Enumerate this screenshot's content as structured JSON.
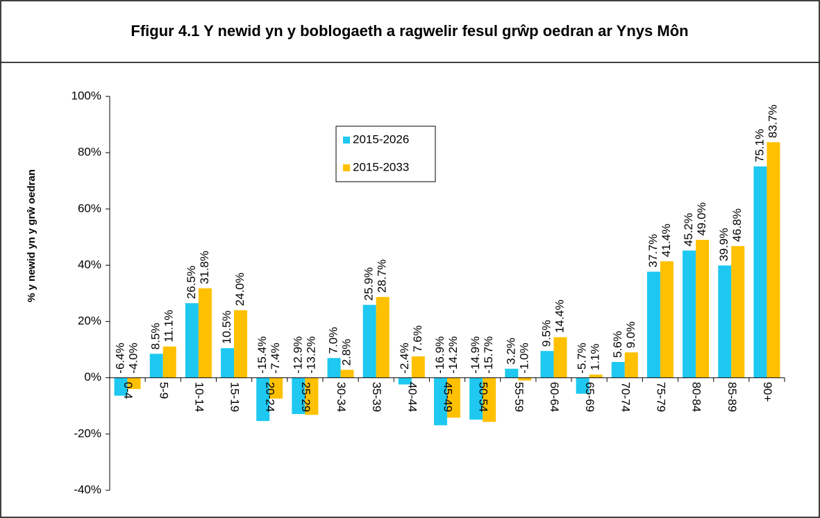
{
  "chart_data": {
    "type": "bar",
    "title": "Ffigur 4.1 Y newid yn y boblogaeth a ragwelir fesul grŵp oedran ar Ynys Môn",
    "y_label": "% y newid yn y grŵ oedran",
    "categories": [
      "0-4",
      "5-9",
      "10-14",
      "15-19",
      "20-24",
      "25-29",
      "30-34",
      "35-39",
      "40-44",
      "45-49",
      "50-54",
      "55-59",
      "60-64",
      "65-69",
      "70-74",
      "75-79",
      "80-84",
      "85-89",
      "90+"
    ],
    "series": [
      {
        "name": "2015-2026",
        "color": "#1ec8f0",
        "values": [
          -6.4,
          8.5,
          26.5,
          10.5,
          -15.4,
          -12.9,
          7.0,
          25.9,
          -2.4,
          -16.9,
          -14.9,
          3.2,
          9.5,
          -5.7,
          5.6,
          37.7,
          45.2,
          39.9,
          75.1
        ],
        "value_labels": [
          "-6.4%",
          "8.5%",
          "26.5%",
          "10.5%",
          "-15.4%",
          "-12.9%",
          "7.0%",
          "25.9%",
          "-2.4%",
          "-16.9%",
          "-14.9%",
          "3.2%",
          "9.5%",
          "-5.7%",
          "5.6%",
          "37.7%",
          "45.2%",
          "39.9%",
          "75.1%"
        ]
      },
      {
        "name": "2015-2033",
        "color": "#ffc000",
        "values": [
          -4.0,
          11.1,
          31.8,
          24.0,
          -7.4,
          -13.2,
          2.8,
          28.7,
          7.6,
          -14.2,
          -15.7,
          -1.0,
          14.4,
          1.1,
          9.0,
          41.4,
          49.0,
          46.8,
          83.7
        ],
        "value_labels": [
          "-4.0%",
          "11.1%",
          "31.8%",
          "24.0%",
          "-7.4%",
          "-13.2%",
          "2.8%",
          "28.7%",
          "7.6%",
          "-14.2%",
          "-15.7%",
          "-1.0%",
          "14.4%",
          "1.1%",
          "9.0%",
          "41.4%",
          "49.0%",
          "46.8%",
          "83.7%"
        ]
      }
    ],
    "ylim": [
      -40,
      100
    ],
    "yticks": [
      {
        "value": -40,
        "label": "-40%"
      },
      {
        "value": -20,
        "label": "-20%"
      },
      {
        "value": 0,
        "label": "0%"
      },
      {
        "value": 20,
        "label": "20%"
      },
      {
        "value": 40,
        "label": "40%"
      },
      {
        "value": 60,
        "label": "60%"
      },
      {
        "value": 80,
        "label": "80%"
      },
      {
        "value": 100,
        "label": "100%"
      }
    ],
    "legend": "top-center"
  }
}
